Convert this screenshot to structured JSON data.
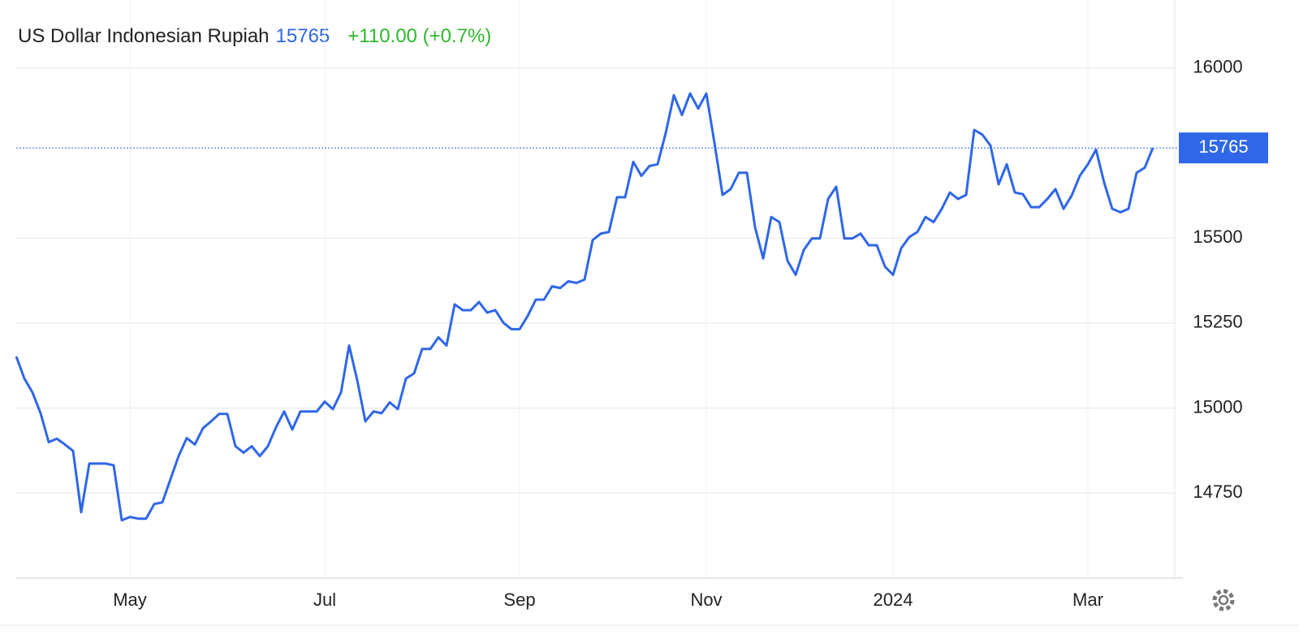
{
  "chart_data": {
    "type": "line",
    "title": "US Dollar Indonesian Rupiah",
    "last_price": 15765,
    "change_label": "+110.00 (+0.7%)",
    "categories": [
      null,
      null,
      null,
      null,
      null,
      null,
      null,
      null,
      null,
      null,
      null,
      null,
      null,
      null,
      "May",
      null,
      null,
      null,
      null,
      null,
      null,
      null,
      null,
      null,
      null,
      null,
      null,
      null,
      null,
      null,
      null,
      null,
      null,
      null,
      null,
      null,
      null,
      null,
      "Jul",
      null,
      null,
      null,
      null,
      null,
      null,
      null,
      null,
      null,
      null,
      null,
      null,
      null,
      null,
      null,
      null,
      null,
      null,
      null,
      null,
      null,
      null,
      null,
      "Sep",
      null,
      null,
      null,
      null,
      null,
      null,
      null,
      null,
      null,
      null,
      null,
      null,
      null,
      null,
      null,
      null,
      null,
      null,
      null,
      null,
      null,
      null,
      "Nov",
      null,
      null,
      null,
      null,
      null,
      null,
      null,
      null,
      null,
      null,
      null,
      null,
      null,
      null,
      null,
      null,
      null,
      null,
      null,
      null,
      null,
      null,
      "2024",
      null,
      null,
      null,
      null,
      null,
      null,
      null,
      null,
      null,
      null,
      null,
      null,
      null,
      null,
      null,
      null,
      null,
      null,
      null,
      null,
      null,
      null,
      null,
      "Mar",
      null,
      null,
      null,
      null,
      null,
      null,
      null,
      null
    ],
    "series": [
      {
        "name": "US Dollar Indonesian Rupiah",
        "color": "#2f67e8",
        "values": [
          15152,
          15087,
          15046,
          14985,
          14900,
          14910,
          14893,
          14874,
          14694,
          14837,
          14837,
          14837,
          14832,
          14670,
          14680,
          14675,
          14675,
          14718,
          14723,
          14791,
          14859,
          14912,
          14893,
          14941,
          14961,
          14983,
          14983,
          14888,
          14869,
          14888,
          14859,
          14888,
          14944,
          14990,
          14937,
          14990,
          14990,
          14990,
          15019,
          14997,
          15046,
          15184,
          15082,
          14961,
          14990,
          14985,
          15017,
          14997,
          15087,
          15102,
          15174,
          15174,
          15208,
          15184,
          15305,
          15288,
          15288,
          15312,
          15281,
          15288,
          15251,
          15232,
          15232,
          15271,
          15319,
          15319,
          15358,
          15353,
          15373,
          15368,
          15378,
          15494,
          15513,
          15518,
          15620,
          15620,
          15724,
          15683,
          15712,
          15717,
          15809,
          15920,
          15862,
          15925,
          15881,
          15925,
          15780,
          15627,
          15644,
          15692,
          15692,
          15532,
          15440,
          15562,
          15547,
          15433,
          15392,
          15465,
          15499,
          15499,
          15615,
          15651,
          15499,
          15499,
          15513,
          15479,
          15479,
          15416,
          15392,
          15470,
          15503,
          15518,
          15562,
          15547,
          15586,
          15634,
          15615,
          15627,
          15818,
          15804,
          15772,
          15658,
          15717,
          15634,
          15629,
          15591,
          15591,
          15615,
          15644,
          15586,
          15625,
          15683,
          15717,
          15760,
          15663,
          15586,
          15576,
          15586,
          15692,
          15707,
          15765
        ]
      }
    ],
    "ylim": [
      14500,
      16200
    ],
    "yticks": [
      14750,
      15000,
      15250,
      15500,
      16000
    ],
    "grid": true
  }
}
